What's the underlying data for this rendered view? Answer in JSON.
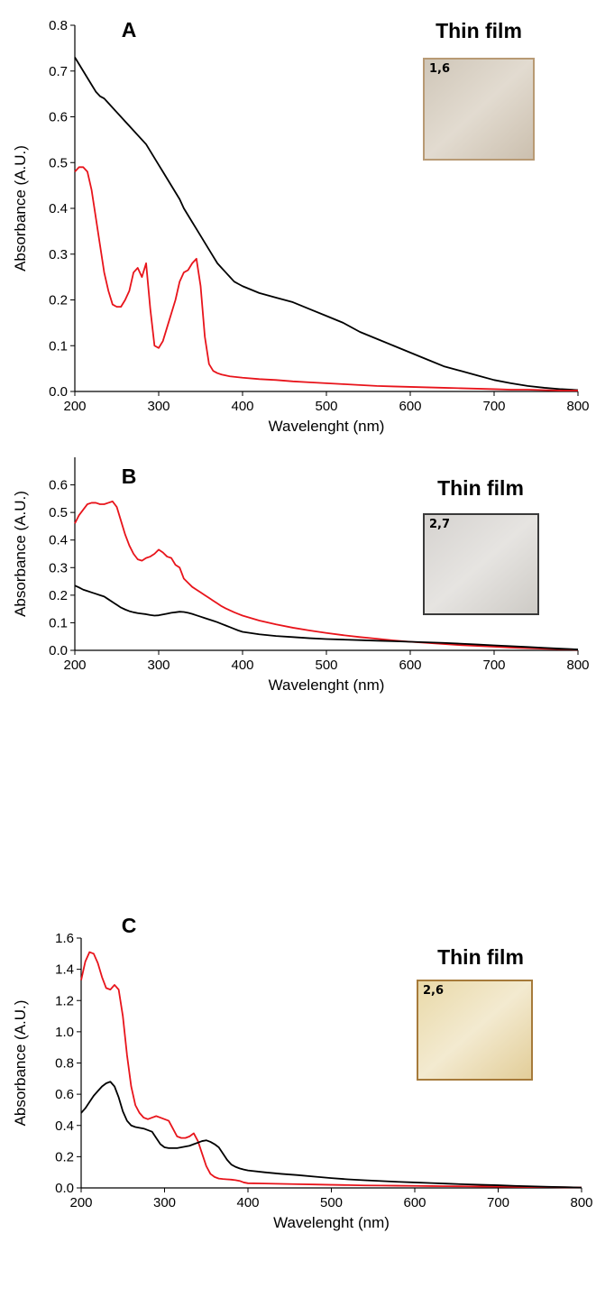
{
  "chart_data": [
    {
      "type": "line",
      "panel_label": "A",
      "inset_title": "Thin film",
      "inset_label": "1,6",
      "x_label": "Wavelenght (nm)",
      "y_label": "Absorbance (A.U.)",
      "x": [
        200,
        205,
        210,
        215,
        220,
        225,
        230,
        235,
        240,
        245,
        250,
        255,
        260,
        265,
        270,
        275,
        280,
        285,
        290,
        295,
        300,
        305,
        310,
        315,
        320,
        325,
        330,
        335,
        340,
        345,
        350,
        355,
        360,
        365,
        370,
        375,
        380,
        385,
        390,
        395,
        400,
        420,
        440,
        460,
        480,
        500,
        520,
        540,
        560,
        580,
        600,
        620,
        640,
        660,
        680,
        700,
        720,
        740,
        760,
        780,
        800
      ],
      "series": [
        {
          "color": "#000000",
          "values": [
            0.73,
            0.715,
            0.7,
            0.685,
            0.67,
            0.655,
            0.645,
            0.64,
            0.63,
            0.62,
            0.61,
            0.6,
            0.59,
            0.58,
            0.57,
            0.56,
            0.55,
            0.54,
            0.525,
            0.51,
            0.495,
            0.48,
            0.465,
            0.45,
            0.435,
            0.42,
            0.4,
            0.385,
            0.37,
            0.355,
            0.34,
            0.325,
            0.31,
            0.295,
            0.28,
            0.27,
            0.26,
            0.25,
            0.24,
            0.235,
            0.23,
            0.215,
            0.205,
            0.195,
            0.18,
            0.165,
            0.15,
            0.13,
            0.115,
            0.1,
            0.085,
            0.07,
            0.055,
            0.045,
            0.035,
            0.025,
            0.018,
            0.012,
            0.008,
            0.005,
            0.003
          ]
        },
        {
          "color": "#e8141b",
          "values": [
            0.48,
            0.49,
            0.49,
            0.48,
            0.44,
            0.38,
            0.32,
            0.26,
            0.22,
            0.19,
            0.185,
            0.185,
            0.2,
            0.22,
            0.26,
            0.27,
            0.25,
            0.28,
            0.18,
            0.1,
            0.095,
            0.11,
            0.14,
            0.17,
            0.2,
            0.24,
            0.26,
            0.265,
            0.28,
            0.29,
            0.23,
            0.12,
            0.06,
            0.045,
            0.04,
            0.037,
            0.035,
            0.033,
            0.032,
            0.031,
            0.03,
            0.027,
            0.025,
            0.022,
            0.02,
            0.018,
            0.016,
            0.014,
            0.012,
            0.011,
            0.01,
            0.009,
            0.008,
            0.007,
            0.006,
            0.005,
            0.004,
            0.004,
            0.003,
            0.002,
            0.002
          ]
        }
      ],
      "xlim": [
        200,
        800
      ],
      "xticks": [
        200,
        300,
        400,
        500,
        600,
        700,
        800
      ],
      "ylim": [
        0,
        0.8
      ],
      "yticks": [
        {
          "value": 0,
          "label": "0.0"
        },
        0.1,
        0.2,
        0.3,
        0.4,
        0.5,
        0.6,
        0.7,
        0.8
      ]
    },
    {
      "type": "line",
      "panel_label": "B",
      "inset_title": "Thin film",
      "inset_label": "2,7",
      "x_label": "Wavelenght (nm)",
      "y_label": "Absorbance (A.U.)",
      "x": [
        200,
        205,
        210,
        215,
        220,
        225,
        230,
        235,
        240,
        245,
        250,
        255,
        260,
        265,
        270,
        275,
        280,
        285,
        290,
        295,
        300,
        305,
        310,
        315,
        320,
        325,
        330,
        335,
        340,
        345,
        350,
        355,
        360,
        365,
        370,
        375,
        380,
        385,
        390,
        395,
        400,
        420,
        440,
        460,
        480,
        500,
        520,
        540,
        560,
        580,
        600,
        620,
        640,
        660,
        680,
        700,
        720,
        740,
        760,
        780,
        800
      ],
      "series": [
        {
          "color": "#e8141b",
          "values": [
            0.46,
            0.49,
            0.51,
            0.53,
            0.535,
            0.535,
            0.53,
            0.53,
            0.535,
            0.54,
            0.52,
            0.47,
            0.42,
            0.38,
            0.35,
            0.33,
            0.325,
            0.335,
            0.34,
            0.35,
            0.365,
            0.355,
            0.34,
            0.335,
            0.31,
            0.3,
            0.26,
            0.245,
            0.23,
            0.22,
            0.21,
            0.2,
            0.19,
            0.18,
            0.17,
            0.16,
            0.152,
            0.145,
            0.138,
            0.132,
            0.126,
            0.108,
            0.094,
            0.082,
            0.072,
            0.063,
            0.055,
            0.048,
            0.042,
            0.036,
            0.031,
            0.027,
            0.023,
            0.019,
            0.016,
            0.013,
            0.01,
            0.008,
            0.006,
            0.004,
            0.002
          ]
        },
        {
          "color": "#000000",
          "values": [
            0.235,
            0.228,
            0.22,
            0.215,
            0.21,
            0.205,
            0.2,
            0.195,
            0.185,
            0.175,
            0.165,
            0.155,
            0.148,
            0.142,
            0.138,
            0.135,
            0.133,
            0.131,
            0.128,
            0.126,
            0.127,
            0.13,
            0.133,
            0.136,
            0.138,
            0.14,
            0.139,
            0.136,
            0.132,
            0.127,
            0.122,
            0.117,
            0.112,
            0.107,
            0.102,
            0.096,
            0.09,
            0.084,
            0.078,
            0.072,
            0.067,
            0.058,
            0.052,
            0.048,
            0.044,
            0.041,
            0.039,
            0.037,
            0.035,
            0.033,
            0.031,
            0.029,
            0.027,
            0.024,
            0.021,
            0.018,
            0.015,
            0.012,
            0.009,
            0.006,
            0.003
          ]
        }
      ],
      "xlim": [
        200,
        800
      ],
      "xticks": [
        200,
        300,
        400,
        500,
        600,
        700,
        800
      ],
      "ylim": [
        0,
        0.7
      ],
      "yticks": [
        {
          "value": 0,
          "label": "0.0"
        },
        0.1,
        0.2,
        0.3,
        0.4,
        0.5,
        0.6
      ]
    },
    {
      "type": "line",
      "panel_label": "C",
      "inset_title": "Thin film",
      "inset_label": "2,6",
      "x_label": "Wavelenght (nm)",
      "y_label": "Absorbance (A.U.)",
      "x": [
        200,
        205,
        210,
        215,
        220,
        225,
        230,
        235,
        240,
        245,
        250,
        255,
        260,
        265,
        270,
        275,
        280,
        285,
        290,
        295,
        300,
        305,
        310,
        315,
        320,
        325,
        330,
        335,
        340,
        345,
        350,
        355,
        360,
        365,
        370,
        375,
        380,
        385,
        390,
        395,
        400,
        420,
        440,
        460,
        480,
        500,
        520,
        540,
        560,
        580,
        600,
        620,
        640,
        660,
        680,
        700,
        720,
        740,
        760,
        780,
        800
      ],
      "series": [
        {
          "color": "#e8141b",
          "values": [
            1.33,
            1.45,
            1.51,
            1.5,
            1.44,
            1.35,
            1.28,
            1.27,
            1.3,
            1.27,
            1.1,
            0.85,
            0.65,
            0.53,
            0.48,
            0.45,
            0.44,
            0.45,
            0.46,
            0.45,
            0.44,
            0.43,
            0.38,
            0.33,
            0.32,
            0.32,
            0.33,
            0.35,
            0.3,
            0.22,
            0.14,
            0.09,
            0.07,
            0.06,
            0.057,
            0.055,
            0.053,
            0.05,
            0.045,
            0.035,
            0.03,
            0.028,
            0.026,
            0.024,
            0.022,
            0.02,
            0.018,
            0.016,
            0.015,
            0.014,
            0.013,
            0.012,
            0.011,
            0.01,
            0.009,
            0.008,
            0.007,
            0.006,
            0.005,
            0.004,
            0.003
          ]
        },
        {
          "color": "#000000",
          "values": [
            0.48,
            0.51,
            0.55,
            0.59,
            0.62,
            0.65,
            0.67,
            0.68,
            0.65,
            0.58,
            0.49,
            0.43,
            0.4,
            0.39,
            0.385,
            0.38,
            0.37,
            0.36,
            0.32,
            0.28,
            0.26,
            0.255,
            0.255,
            0.255,
            0.26,
            0.265,
            0.27,
            0.28,
            0.29,
            0.3,
            0.305,
            0.295,
            0.28,
            0.26,
            0.22,
            0.18,
            0.15,
            0.135,
            0.125,
            0.118,
            0.112,
            0.1,
            0.09,
            0.082,
            0.072,
            0.063,
            0.055,
            0.049,
            0.044,
            0.039,
            0.035,
            0.031,
            0.027,
            0.023,
            0.02,
            0.017,
            0.013,
            0.01,
            0.007,
            0.005,
            0.002
          ]
        }
      ],
      "xlim": [
        200,
        800
      ],
      "xticks": [
        200,
        300,
        400,
        500,
        600,
        700,
        800
      ],
      "ylim": [
        0,
        1.6
      ],
      "yticks": [
        {
          "value": 0,
          "label": "0.0"
        },
        0.2,
        0.4,
        0.6,
        0.8,
        {
          "value": 1,
          "label": "1.0"
        },
        1.2,
        1.4,
        1.6
      ]
    }
  ]
}
